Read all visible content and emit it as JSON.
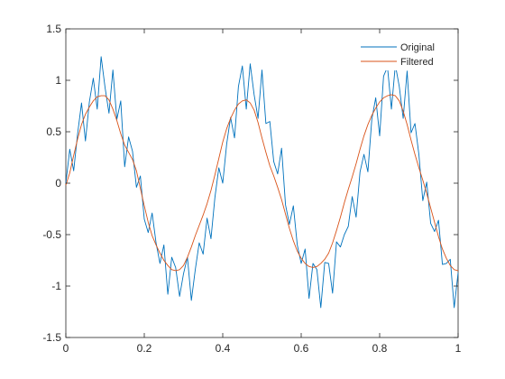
{
  "chart_data": {
    "type": "line",
    "title": "",
    "xlabel": "",
    "ylabel": "",
    "xlim": [
      0,
      1
    ],
    "ylim": [
      -1.5,
      1.5
    ],
    "xticks": [
      0,
      0.2,
      0.4,
      0.6,
      0.8,
      1
    ],
    "xtick_labels": [
      "0",
      "0.2",
      "0.4",
      "0.6",
      "0.8",
      "1"
    ],
    "yticks": [
      -1.5,
      -1,
      -0.5,
      0,
      0.5,
      1,
      1.5
    ],
    "ytick_labels": [
      "-1.5",
      "-1",
      "-0.5",
      "0",
      "0.5",
      "1",
      "1.5"
    ],
    "grid": false,
    "legend_position": "top-right",
    "x_step": 0.01,
    "x_start": 0,
    "series": [
      {
        "name": "Original",
        "color": "#0072BD",
        "values": [
          0.0,
          0.33,
          0.12,
          0.48,
          0.78,
          0.41,
          0.79,
          1.02,
          0.72,
          1.23,
          0.93,
          0.68,
          1.1,
          0.62,
          0.8,
          0.16,
          0.45,
          0.31,
          -0.04,
          0.07,
          -0.35,
          -0.48,
          -0.29,
          -0.58,
          -0.78,
          -0.6,
          -1.08,
          -0.72,
          -0.82,
          -1.1,
          -0.88,
          -0.72,
          -1.14,
          -0.84,
          -0.58,
          -0.69,
          -0.34,
          -0.54,
          -0.14,
          0.15,
          0.0,
          0.38,
          0.64,
          0.44,
          0.94,
          1.14,
          0.72,
          1.16,
          0.86,
          0.63,
          1.1,
          0.58,
          0.6,
          0.21,
          0.09,
          0.34,
          -0.21,
          -0.4,
          -0.22,
          -0.6,
          -0.78,
          -0.64,
          -1.12,
          -0.78,
          -0.84,
          -1.21,
          -0.77,
          -0.78,
          -1.07,
          -0.57,
          -0.62,
          -0.5,
          -0.42,
          -0.13,
          -0.33,
          0.11,
          0.28,
          0.11,
          0.62,
          0.83,
          0.46,
          1.04,
          1.13,
          0.72,
          1.15,
          0.94,
          0.63,
          1.09,
          0.49,
          0.58,
          0.28,
          -0.17,
          0.01,
          -0.39,
          -0.47,
          -0.36,
          -0.79,
          -0.78,
          -0.74,
          -1.21,
          -0.87
        ]
      },
      {
        "name": "Filtered",
        "color": "#D95319",
        "values": [
          -0.02,
          0.1,
          0.27,
          0.43,
          0.57,
          0.67,
          0.74,
          0.8,
          0.84,
          0.85,
          0.85,
          0.81,
          0.72,
          0.61,
          0.48,
          0.37,
          0.3,
          0.23,
          0.12,
          -0.05,
          -0.22,
          -0.38,
          -0.51,
          -0.6,
          -0.68,
          -0.75,
          -0.8,
          -0.84,
          -0.85,
          -0.84,
          -0.8,
          -0.72,
          -0.62,
          -0.51,
          -0.41,
          -0.31,
          -0.2,
          -0.07,
          0.08,
          0.24,
          0.4,
          0.53,
          0.63,
          0.71,
          0.77,
          0.8,
          0.81,
          0.78,
          0.71,
          0.59,
          0.44,
          0.3,
          0.17,
          0.07,
          -0.04,
          -0.16,
          -0.3,
          -0.44,
          -0.56,
          -0.66,
          -0.73,
          -0.78,
          -0.81,
          -0.82,
          -0.81,
          -0.78,
          -0.74,
          -0.68,
          -0.58,
          -0.46,
          -0.33,
          -0.19,
          -0.06,
          0.06,
          0.19,
          0.33,
          0.46,
          0.57,
          0.66,
          0.73,
          0.79,
          0.83,
          0.85,
          0.86,
          0.85,
          0.8,
          0.7,
          0.57,
          0.42,
          0.28,
          0.15,
          0.03,
          -0.1,
          -0.24,
          -0.38,
          -0.52,
          -0.64,
          -0.73,
          -0.8,
          -0.84,
          -0.85
        ]
      }
    ]
  }
}
